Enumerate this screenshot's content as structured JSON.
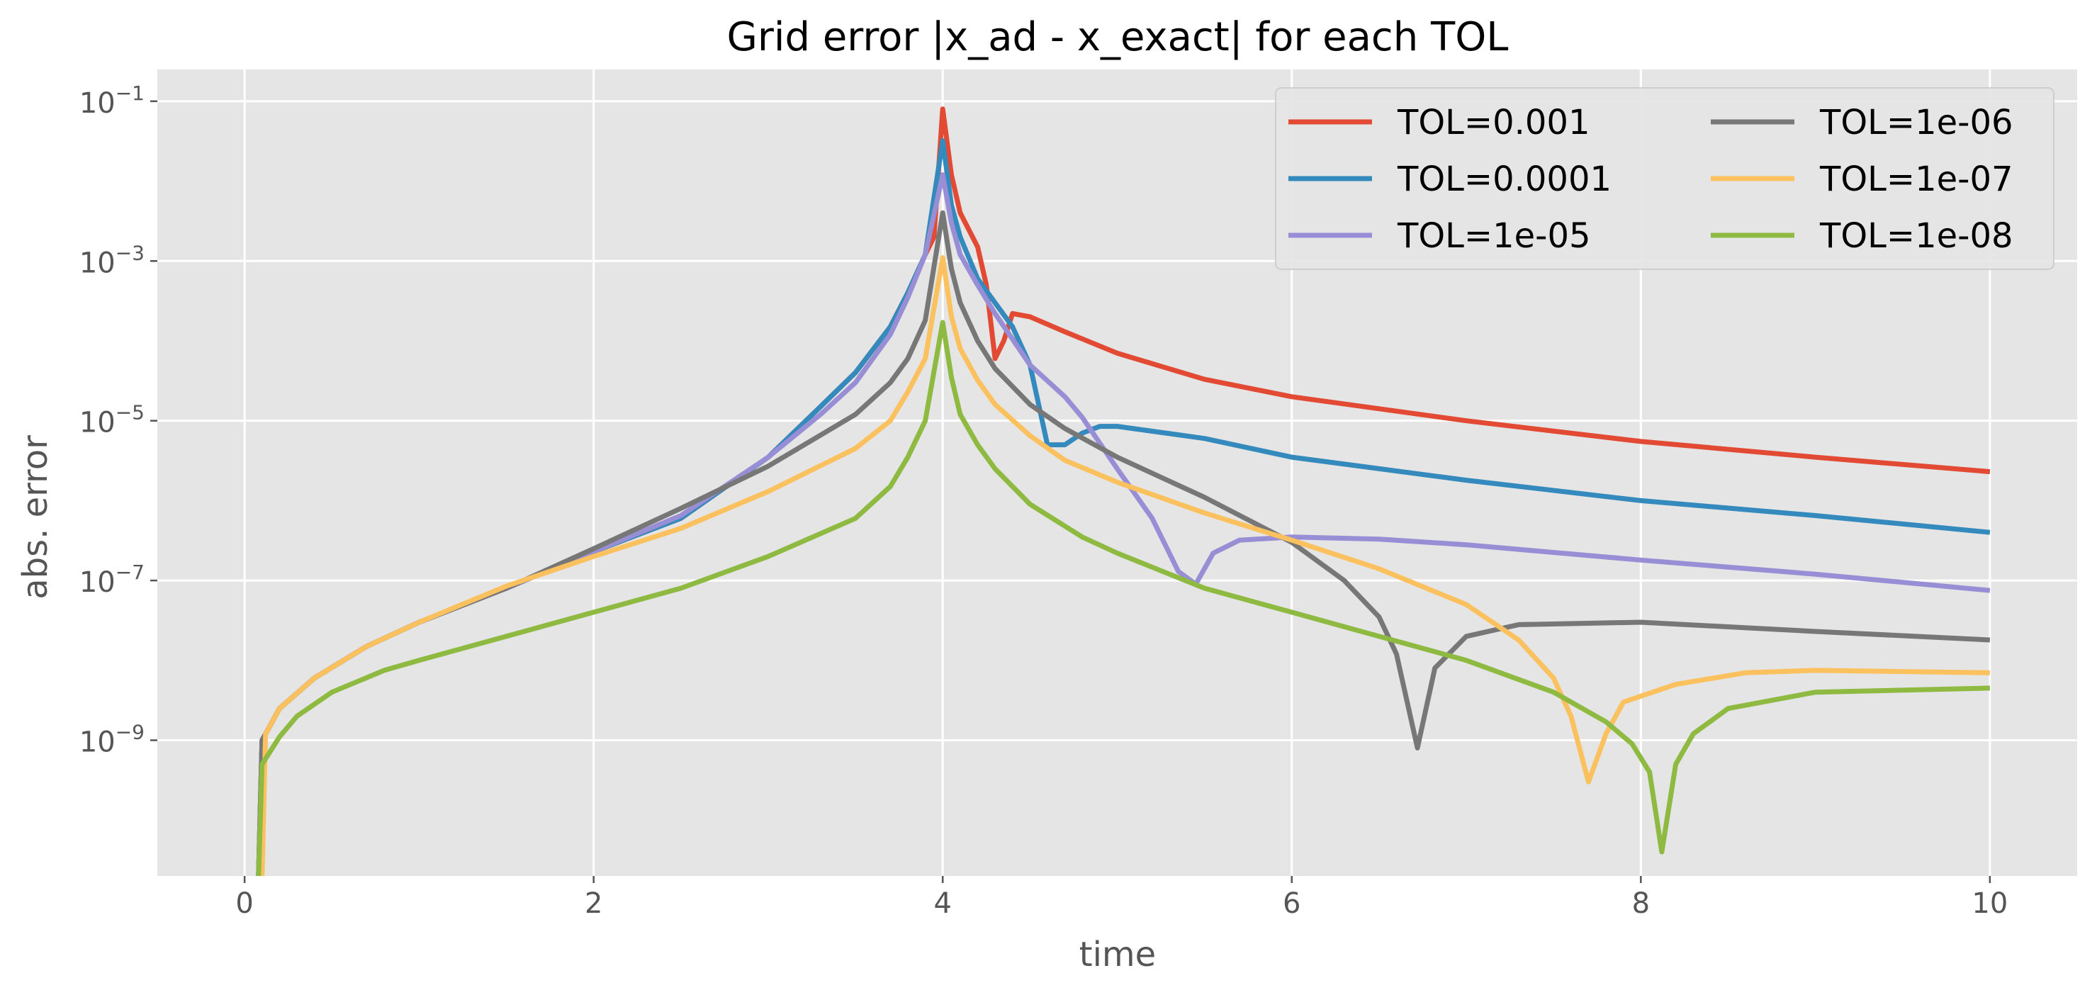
{
  "chart_data": {
    "type": "line",
    "title": "Grid error |x_ad - x_exact| for each TOL",
    "xlabel": "time",
    "ylabel": "abs. error",
    "xscale": "linear",
    "yscale": "log",
    "xlim": [
      -0.5,
      10.5
    ],
    "ylim": [
      2e-11,
      0.25
    ],
    "xticks": [
      0,
      2,
      4,
      6,
      8,
      10
    ],
    "xtick_labels": [
      "0",
      "2",
      "4",
      "6",
      "8",
      "10"
    ],
    "yticks": [
      1e-09,
      1e-07,
      1e-05,
      0.001,
      0.1
    ],
    "ytick_labels": [
      {
        "base": "10",
        "exp": "−9"
      },
      {
        "base": "10",
        "exp": "−7"
      },
      {
        "base": "10",
        "exp": "−5"
      },
      {
        "base": "10",
        "exp": "−3"
      },
      {
        "base": "10",
        "exp": "−1"
      }
    ],
    "grid": true,
    "style": "ggplot",
    "legend": {
      "position": "top-right",
      "columns": 2
    },
    "series": [
      {
        "name": "TOL=0.001",
        "color": "#E24A33",
        "x": [
          0.08,
          0.1,
          0.2,
          0.4,
          0.7,
          1.0,
          1.5,
          2.0,
          2.5,
          3.0,
          3.3,
          3.5,
          3.7,
          3.8,
          3.9,
          3.95,
          4.0,
          4.05,
          4.1,
          4.2,
          4.25,
          4.3,
          4.35,
          4.4,
          4.5,
          4.7,
          5.0,
          5.5,
          6.0,
          7.0,
          8.0,
          9.0,
          10.0
        ],
        "y": [
          2e-11,
          1e-09,
          2.5e-09,
          6e-09,
          1.5e-08,
          3e-08,
          8e-08,
          2.3e-07,
          6e-07,
          3.5e-06,
          1.5e-05,
          4e-05,
          0.00015,
          0.0004,
          0.0012,
          0.002,
          0.08,
          0.012,
          0.004,
          0.0015,
          0.0005,
          6e-05,
          0.0001,
          0.00022,
          0.0002,
          0.00013,
          7e-05,
          3.3e-05,
          2e-05,
          1e-05,
          5.5e-06,
          3.5e-06,
          2.3e-06
        ]
      },
      {
        "name": "TOL=0.0001",
        "color": "#348ABD",
        "x": [
          0.08,
          0.1,
          0.2,
          0.4,
          0.7,
          1.0,
          1.5,
          2.0,
          2.5,
          3.0,
          3.3,
          3.5,
          3.7,
          3.8,
          3.9,
          4.0,
          4.05,
          4.1,
          4.2,
          4.3,
          4.4,
          4.5,
          4.6,
          4.7,
          4.8,
          4.9,
          5.0,
          5.5,
          6.0,
          7.0,
          8.0,
          9.0,
          10.0
        ],
        "y": [
          2e-11,
          1e-09,
          2.5e-09,
          6e-09,
          1.5e-08,
          3e-08,
          8e-08,
          2.3e-07,
          6e-07,
          3.5e-06,
          1.5e-05,
          4e-05,
          0.00015,
          0.0004,
          0.0012,
          0.032,
          0.005,
          0.002,
          0.0006,
          0.0003,
          0.00015,
          5e-05,
          5e-06,
          5e-06,
          7e-06,
          8.5e-06,
          8.5e-06,
          6e-06,
          3.5e-06,
          1.8e-06,
          1e-06,
          6.5e-07,
          4e-07
        ]
      },
      {
        "name": "TOL=1e-05",
        "color": "#988ED5",
        "x": [
          0.08,
          0.1,
          0.2,
          0.4,
          0.7,
          1.0,
          1.5,
          2.0,
          2.5,
          3.0,
          3.3,
          3.5,
          3.7,
          3.8,
          3.9,
          4.0,
          4.05,
          4.1,
          4.2,
          4.3,
          4.5,
          4.7,
          4.8,
          5.0,
          5.2,
          5.35,
          5.45,
          5.55,
          5.7,
          6.0,
          6.5,
          7.0,
          8.0,
          9.0,
          10.0
        ],
        "y": [
          2e-11,
          1e-09,
          2.5e-09,
          6e-09,
          1.5e-08,
          3e-08,
          8e-08,
          2.3e-07,
          6.5e-07,
          3.5e-06,
          1.2e-05,
          3e-05,
          0.00012,
          0.00035,
          0.0012,
          0.012,
          0.003,
          0.0012,
          0.0005,
          0.00022,
          5e-05,
          2e-05,
          1.1e-05,
          2.5e-06,
          6e-07,
          1.3e-07,
          9e-08,
          2.2e-07,
          3.2e-07,
          3.5e-07,
          3.3e-07,
          2.8e-07,
          1.8e-07,
          1.2e-07,
          7.5e-08
        ]
      },
      {
        "name": "TOL=1e-06",
        "color": "#777777",
        "x": [
          0.08,
          0.1,
          0.2,
          0.4,
          0.7,
          1.0,
          1.5,
          2.0,
          2.5,
          3.0,
          3.5,
          3.7,
          3.8,
          3.9,
          4.0,
          4.05,
          4.1,
          4.2,
          4.3,
          4.5,
          4.7,
          5.0,
          5.5,
          6.0,
          6.3,
          6.5,
          6.6,
          6.72,
          6.82,
          7.0,
          7.3,
          8.0,
          9.0,
          10.0
        ],
        "y": [
          2e-11,
          1e-09,
          2.5e-09,
          6e-09,
          1.5e-08,
          3e-08,
          8e-08,
          2.5e-07,
          8e-07,
          2.7e-06,
          1.2e-05,
          3e-05,
          6e-05,
          0.00018,
          0.004,
          0.0008,
          0.0003,
          0.0001,
          4.5e-05,
          1.6e-05,
          8e-06,
          3.5e-06,
          1.1e-06,
          3e-07,
          1e-07,
          3.5e-08,
          1.2e-08,
          8e-10,
          8e-09,
          2e-08,
          2.8e-08,
          3e-08,
          2.3e-08,
          1.8e-08
        ]
      },
      {
        "name": "TOL=1e-07",
        "color": "#FBC15E",
        "x": [
          0.1,
          0.12,
          0.2,
          0.4,
          0.7,
          1.0,
          1.5,
          2.0,
          2.5,
          3.0,
          3.5,
          3.7,
          3.8,
          3.9,
          4.0,
          4.05,
          4.1,
          4.2,
          4.3,
          4.5,
          4.7,
          5.0,
          5.5,
          6.0,
          6.5,
          7.0,
          7.3,
          7.5,
          7.6,
          7.7,
          7.8,
          7.9,
          8.2,
          8.6,
          9.0,
          10.0
        ],
        "y": [
          2e-11,
          1.2e-09,
          2.5e-09,
          6e-09,
          1.5e-08,
          3e-08,
          8.5e-08,
          2e-07,
          4.5e-07,
          1.3e-06,
          4.5e-06,
          1e-05,
          2.3e-05,
          6e-05,
          0.0011,
          0.0002,
          8e-05,
          3.2e-05,
          1.6e-05,
          6.5e-06,
          3.2e-06,
          1.7e-06,
          7e-07,
          3.2e-07,
          1.4e-07,
          5e-08,
          1.8e-08,
          6e-09,
          2e-09,
          3e-10,
          1.2e-09,
          3e-09,
          5e-09,
          7e-09,
          7.5e-09,
          7e-09
        ]
      },
      {
        "name": "TOL=1e-08",
        "color": "#8EBA42",
        "x": [
          0.08,
          0.1,
          0.2,
          0.3,
          0.5,
          0.8,
          1.0,
          1.5,
          2.0,
          2.5,
          3.0,
          3.5,
          3.7,
          3.8,
          3.9,
          4.0,
          4.05,
          4.1,
          4.2,
          4.3,
          4.5,
          4.8,
          5.0,
          5.5,
          6.0,
          6.5,
          7.0,
          7.5,
          7.8,
          7.95,
          8.05,
          8.12,
          8.2,
          8.3,
          8.5,
          9.0,
          10.0
        ],
        "y": [
          2e-11,
          5e-10,
          1.1e-09,
          2e-09,
          4e-09,
          7.5e-09,
          1e-08,
          2e-08,
          4e-08,
          8e-08,
          2e-07,
          6e-07,
          1.5e-06,
          3.5e-06,
          1e-05,
          0.00017,
          3.5e-05,
          1.2e-05,
          5e-06,
          2.5e-06,
          9e-07,
          3.5e-07,
          2.2e-07,
          8e-08,
          4e-08,
          2e-08,
          1e-08,
          4e-09,
          1.7e-09,
          9e-10,
          4e-10,
          4e-11,
          5e-10,
          1.2e-09,
          2.5e-09,
          4e-09,
          4.5e-09
        ]
      }
    ]
  }
}
